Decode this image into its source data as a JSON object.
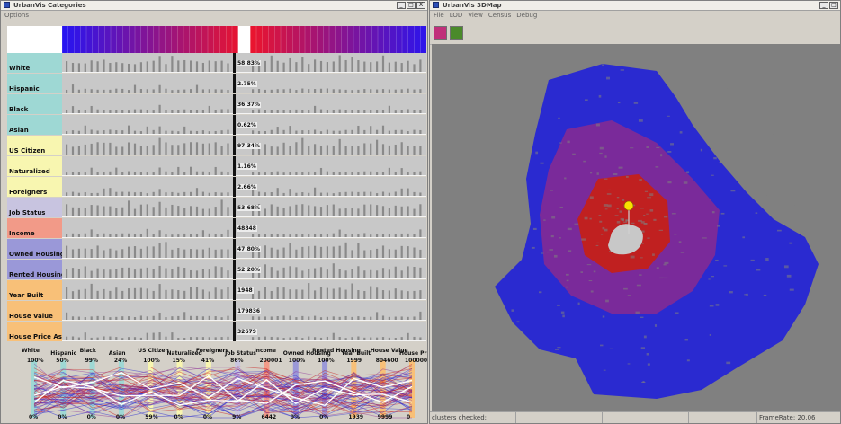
{
  "left_window": {
    "title": "UrbanVis Categories",
    "menu": [
      "Options"
    ],
    "controls": [
      "_",
      "□",
      "X"
    ]
  },
  "right_window": {
    "title": "UrbanVis 3DMap",
    "menu": [
      "File",
      "LOD",
      "View",
      "Census",
      "Debug"
    ],
    "controls": [
      "_",
      "□"
    ],
    "toolbar": [
      {
        "icon": "globe-icon",
        "color": "#c0307a"
      },
      {
        "icon": "grid-icon",
        "color": "#4a8a2a"
      }
    ],
    "status": {
      "clusters": "clusters checked: 115/739857",
      "framerate": "FrameRate: 20.06"
    }
  },
  "categories": [
    {
      "label": "White",
      "value": "58.83%",
      "color": "#9ed8d4"
    },
    {
      "label": "Hispanic",
      "value": "2.75%",
      "color": "#9ed8d4"
    },
    {
      "label": "Black",
      "value": "36.37%",
      "color": "#9ed8d4"
    },
    {
      "label": "Asian",
      "value": "0.62%",
      "color": "#9ed8d4"
    },
    {
      "label": "US Citizen",
      "value": "97.34%",
      "color": "#f8f6b0"
    },
    {
      "label": "Naturalized",
      "value": "1.16%",
      "color": "#f8f6b0"
    },
    {
      "label": "Foreigners",
      "value": "2.66%",
      "color": "#f8f6b0"
    },
    {
      "label": "Job Status",
      "value": "53.68%",
      "color": "#c8c4e0"
    },
    {
      "label": "Income",
      "value": "48848",
      "color": "#f29a88"
    },
    {
      "label": "Owned Housing",
      "value": "47.80%",
      "color": "#9a98d8"
    },
    {
      "label": "Rented Housing",
      "value": "52.20%",
      "color": "#9a98d8"
    },
    {
      "label": "Year Built",
      "value": "1948",
      "color": "#f8c078"
    },
    {
      "label": "House Value",
      "value": "179836",
      "color": "#f8c078"
    },
    {
      "label": "House Price Asked",
      "value": "32679",
      "color": "#f8c078"
    }
  ],
  "parallel_axes": [
    {
      "label": "White",
      "max": "100%",
      "min": "0%",
      "color": "#9ed8d4"
    },
    {
      "label": "Hispanic",
      "max": "50%",
      "min": "0%",
      "color": "#9ed8d4"
    },
    {
      "label": "Black",
      "max": "99%",
      "min": "0%",
      "color": "#9ed8d4"
    },
    {
      "label": "Asian",
      "max": "24%",
      "min": "0%",
      "color": "#9ed8d4"
    },
    {
      "label": "US Citizen",
      "max": "100%",
      "min": "59%",
      "color": "#f8f6b0"
    },
    {
      "label": "Naturalized",
      "max": "15%",
      "min": "0%",
      "color": "#f8f6b0"
    },
    {
      "label": "Foreigners",
      "max": "41%",
      "min": "0%",
      "color": "#f8f6b0"
    },
    {
      "label": "Job Status",
      "max": "86%",
      "min": "9%",
      "color": "#c8c4e0"
    },
    {
      "label": "Income",
      "max": "200001",
      "min": "6442",
      "color": "#f29a88"
    },
    {
      "label": "Owned Housing",
      "max": "100%",
      "min": "0%",
      "color": "#9a98d8"
    },
    {
      "label": "Rented Housing",
      "max": "100%",
      "min": "0%",
      "color": "#9a98d8"
    },
    {
      "label": "Year Built",
      "max": "1999",
      "min": "1939",
      "color": "#f8c078"
    },
    {
      "label": "House Value",
      "max": "804600",
      "min": "9999",
      "color": "#f8c078"
    },
    {
      "label": "House Price Asked",
      "max": "1000001",
      "min": "0",
      "color": "#f8c078"
    }
  ],
  "colors": {
    "map_background": "#808080",
    "cluster_blue": "#2a2ad0",
    "cluster_purple": "#7a2a9a",
    "cluster_red": "#c02020",
    "selection_gray": "#c8c8c8",
    "marker_yellow": "#f8e000"
  }
}
